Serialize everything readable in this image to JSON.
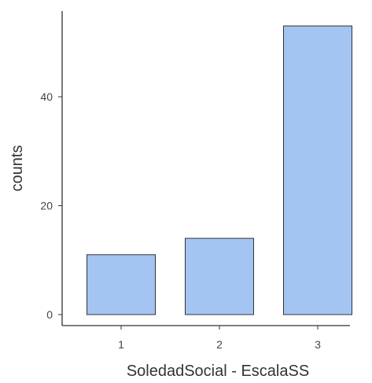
{
  "chart_data": {
    "type": "bar",
    "categories": [
      "1",
      "2",
      "3"
    ],
    "values": [
      11,
      14,
      53
    ],
    "title": "",
    "xlabel": "SoledadSocial - EscalaSS",
    "ylabel": "counts",
    "ylim": [
      0,
      55
    ],
    "yticks": [
      0,
      20,
      40
    ],
    "grid": false,
    "legend": "none",
    "colors": {
      "bar_fill": "#a4c4f2",
      "bar_stroke": "#333333",
      "axis": "#333333"
    }
  }
}
